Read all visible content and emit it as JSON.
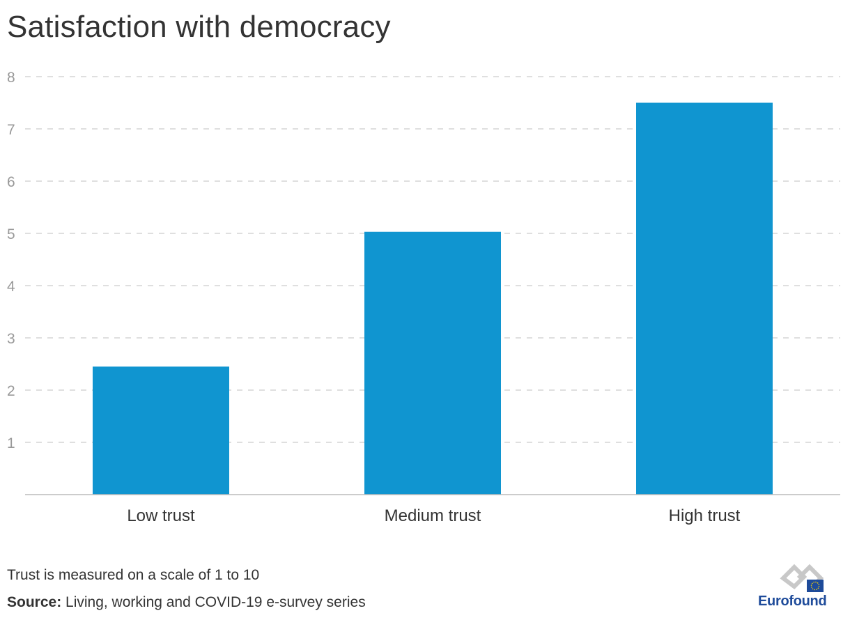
{
  "title": "Satisfaction with democracy",
  "footnote": "Trust is measured on a scale of 1 to 10",
  "source": {
    "label": "Source:",
    "text": " Living, working and COVID-19 e-survey series"
  },
  "logo": {
    "text": "Eurofound"
  },
  "colors": {
    "bar": "#1095d0",
    "grid": "#cccccc",
    "axis": "#bbbbbb",
    "tick": "#999999",
    "label": "#333333"
  },
  "chart_data": {
    "type": "bar",
    "categories": [
      "Low trust",
      "Medium trust",
      "High trust"
    ],
    "values": [
      2.45,
      5.03,
      7.5
    ],
    "ylim": [
      0,
      8
    ],
    "yticks": [
      1,
      2,
      3,
      4,
      5,
      6,
      7,
      8
    ],
    "grid": true,
    "grid_style": "dashed"
  }
}
